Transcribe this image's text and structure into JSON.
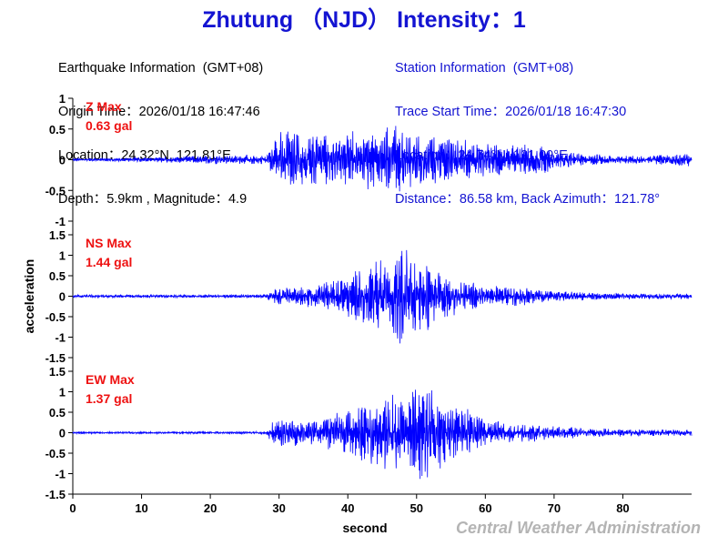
{
  "title": "Zhutung （NJD） Intensity：1",
  "earthquake_info": {
    "heading": "Earthquake Information  (GMT+08)",
    "origin_time": "Origin Time：2026/01/18 16:47:46",
    "location": "Location：24.32°N, 121.81°E",
    "depth_magnitude": "Depth：5.9km , Magnitude：4.9"
  },
  "station_info": {
    "heading": "Station Information  (GMT+08)",
    "trace_start": "Trace Start Time：2026/01/18 16:47:30",
    "location": "Location：24.74°N, 121.09°E",
    "distance_azimuth": "Distance：86.58 km, Back Azimuth：121.78°"
  },
  "credit": "Central Weather Administration",
  "colors": {
    "title": "#1414d2",
    "trace": "#0000ff",
    "max_label": "#ee1111",
    "credit": "#b4b4b4"
  },
  "chart_data": [
    {
      "type": "line",
      "component": "Z",
      "max_label": "Z Max",
      "max_value": "0.63 gal",
      "ylabel": "",
      "xlabel": "",
      "ylim": [
        -1,
        1
      ],
      "yticks": [
        -1,
        -0.5,
        0,
        0.5,
        1
      ],
      "xlim": [
        0,
        90
      ],
      "x": [
        0,
        10,
        20,
        28,
        29,
        30,
        31,
        35,
        40,
        45,
        47,
        48,
        50,
        55,
        60,
        65,
        68,
        70,
        75,
        80,
        85,
        88,
        90
      ],
      "y": [
        0.02,
        0.04,
        0.08,
        0.08,
        0.25,
        0.47,
        0.55,
        0.45,
        0.5,
        0.55,
        0.63,
        0.55,
        0.45,
        0.4,
        0.3,
        0.25,
        0.3,
        0.15,
        0.1,
        0.08,
        0.08,
        0.12,
        0.12
      ]
    },
    {
      "type": "line",
      "component": "NS",
      "max_label": "NS Max",
      "max_value": "1.44 gal",
      "ylabel": "acceleration",
      "xlabel": "",
      "ylim": [
        -1.5,
        1.5
      ],
      "yticks": [
        -1.5,
        -1,
        -0.5,
        0,
        0.5,
        1,
        1.5
      ],
      "xlim": [
        0,
        90
      ],
      "x": [
        0,
        10,
        20,
        28,
        29,
        30,
        35,
        40,
        44,
        46,
        48,
        49,
        50,
        52,
        55,
        60,
        65,
        70,
        75,
        80,
        85,
        90
      ],
      "y": [
        0.04,
        0.04,
        0.04,
        0.05,
        0.15,
        0.25,
        0.3,
        0.6,
        0.9,
        1.0,
        1.3,
        1.44,
        1.2,
        0.8,
        0.5,
        0.3,
        0.25,
        0.15,
        0.1,
        0.08,
        0.08,
        0.08
      ]
    },
    {
      "type": "line",
      "component": "EW",
      "max_label": "EW Max",
      "max_value": "1.37 gal",
      "ylabel": "",
      "xlabel": "second",
      "ylim": [
        -1.5,
        1.5
      ],
      "yticks": [
        -1.5,
        -1,
        -0.5,
        0,
        0.5,
        1,
        1.5
      ],
      "xlim": [
        0,
        90
      ],
      "xticks": [
        0,
        10,
        20,
        30,
        40,
        50,
        60,
        70,
        80
      ],
      "x": [
        0,
        10,
        20,
        28,
        29,
        30,
        35,
        40,
        45,
        48,
        50,
        52,
        55,
        60,
        65,
        70,
        75,
        80,
        85,
        90
      ],
      "y": [
        0.03,
        0.03,
        0.03,
        0.04,
        0.25,
        0.35,
        0.35,
        0.6,
        0.95,
        1.0,
        1.37,
        1.1,
        0.8,
        0.35,
        0.25,
        0.18,
        0.12,
        0.1,
        0.08,
        0.08
      ]
    }
  ]
}
